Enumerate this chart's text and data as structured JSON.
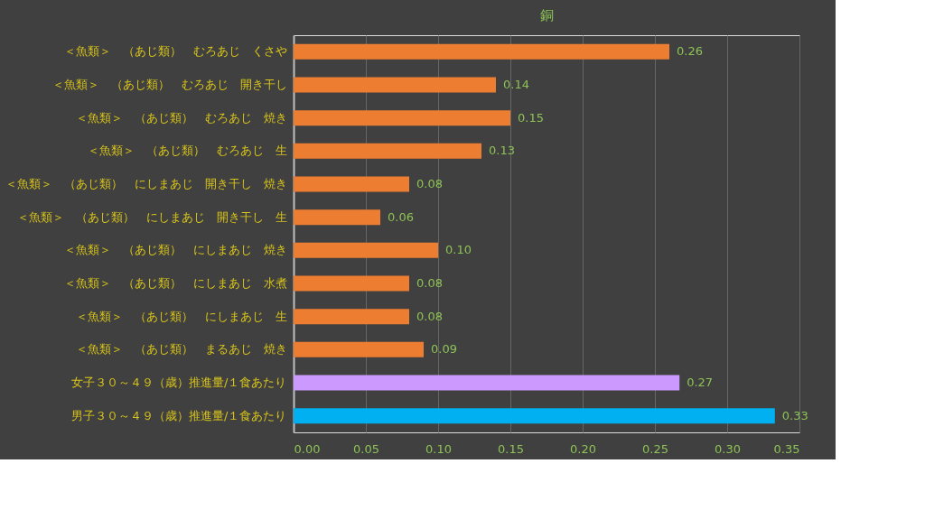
{
  "chart_data": {
    "type": "bar",
    "orientation": "horizontal",
    "title": "銅",
    "categories": [
      "＜魚類＞　（あじ類）　むろあじ　くさや",
      "＜魚類＞　（あじ類）　むろあじ　開き干し",
      "＜魚類＞　（あじ類）　むろあじ　焼き",
      "＜魚類＞　（あじ類）　むろあじ　生",
      "＜魚類＞　（あじ類）　にしまあじ　開き干し　焼き",
      "＜魚類＞　（あじ類）　にしまあじ　開き干し　生",
      "＜魚類＞　（あじ類）　にしまあじ　焼き",
      "＜魚類＞　（あじ類）　にしまあじ　水煮",
      "＜魚類＞　（あじ類）　にしまあじ　生",
      "＜魚類＞　（あじ類）　まるあじ　焼き",
      "女子３０～４９（歳）推進量/１食あたり",
      "男子３０～４９（歳）推進量/１食あたり"
    ],
    "values": [
      0.26,
      0.14,
      0.15,
      0.13,
      0.08,
      0.06,
      0.1,
      0.08,
      0.08,
      0.09,
      0.267,
      0.333
    ],
    "value_labels": [
      "0.26",
      "0.14",
      "0.15",
      "0.13",
      "0.08",
      "0.06",
      "0.10",
      "0.08",
      "0.08",
      "0.09",
      "0.27",
      "0.33"
    ],
    "colors": [
      "#ed7d31",
      "#ed7d31",
      "#ed7d31",
      "#ed7d31",
      "#ed7d31",
      "#ed7d31",
      "#ed7d31",
      "#ed7d31",
      "#ed7d31",
      "#ed7d31",
      "#cc99ff",
      "#00b0f0"
    ],
    "xlim": [
      0,
      0.35
    ],
    "xticks": [
      {
        "value": 0,
        "label": "0.00"
      },
      {
        "value": 0.05,
        "label": "0.05"
      },
      {
        "value": 0.1,
        "label": "0.10"
      },
      {
        "value": 0.15,
        "label": "0.15"
      },
      {
        "value": 0.2,
        "label": "0.20"
      },
      {
        "value": 0.25,
        "label": "0.25"
      },
      {
        "value": 0.3,
        "label": "0.30"
      },
      {
        "value": 0.35,
        "label": "0.35"
      }
    ],
    "grid": "x"
  }
}
